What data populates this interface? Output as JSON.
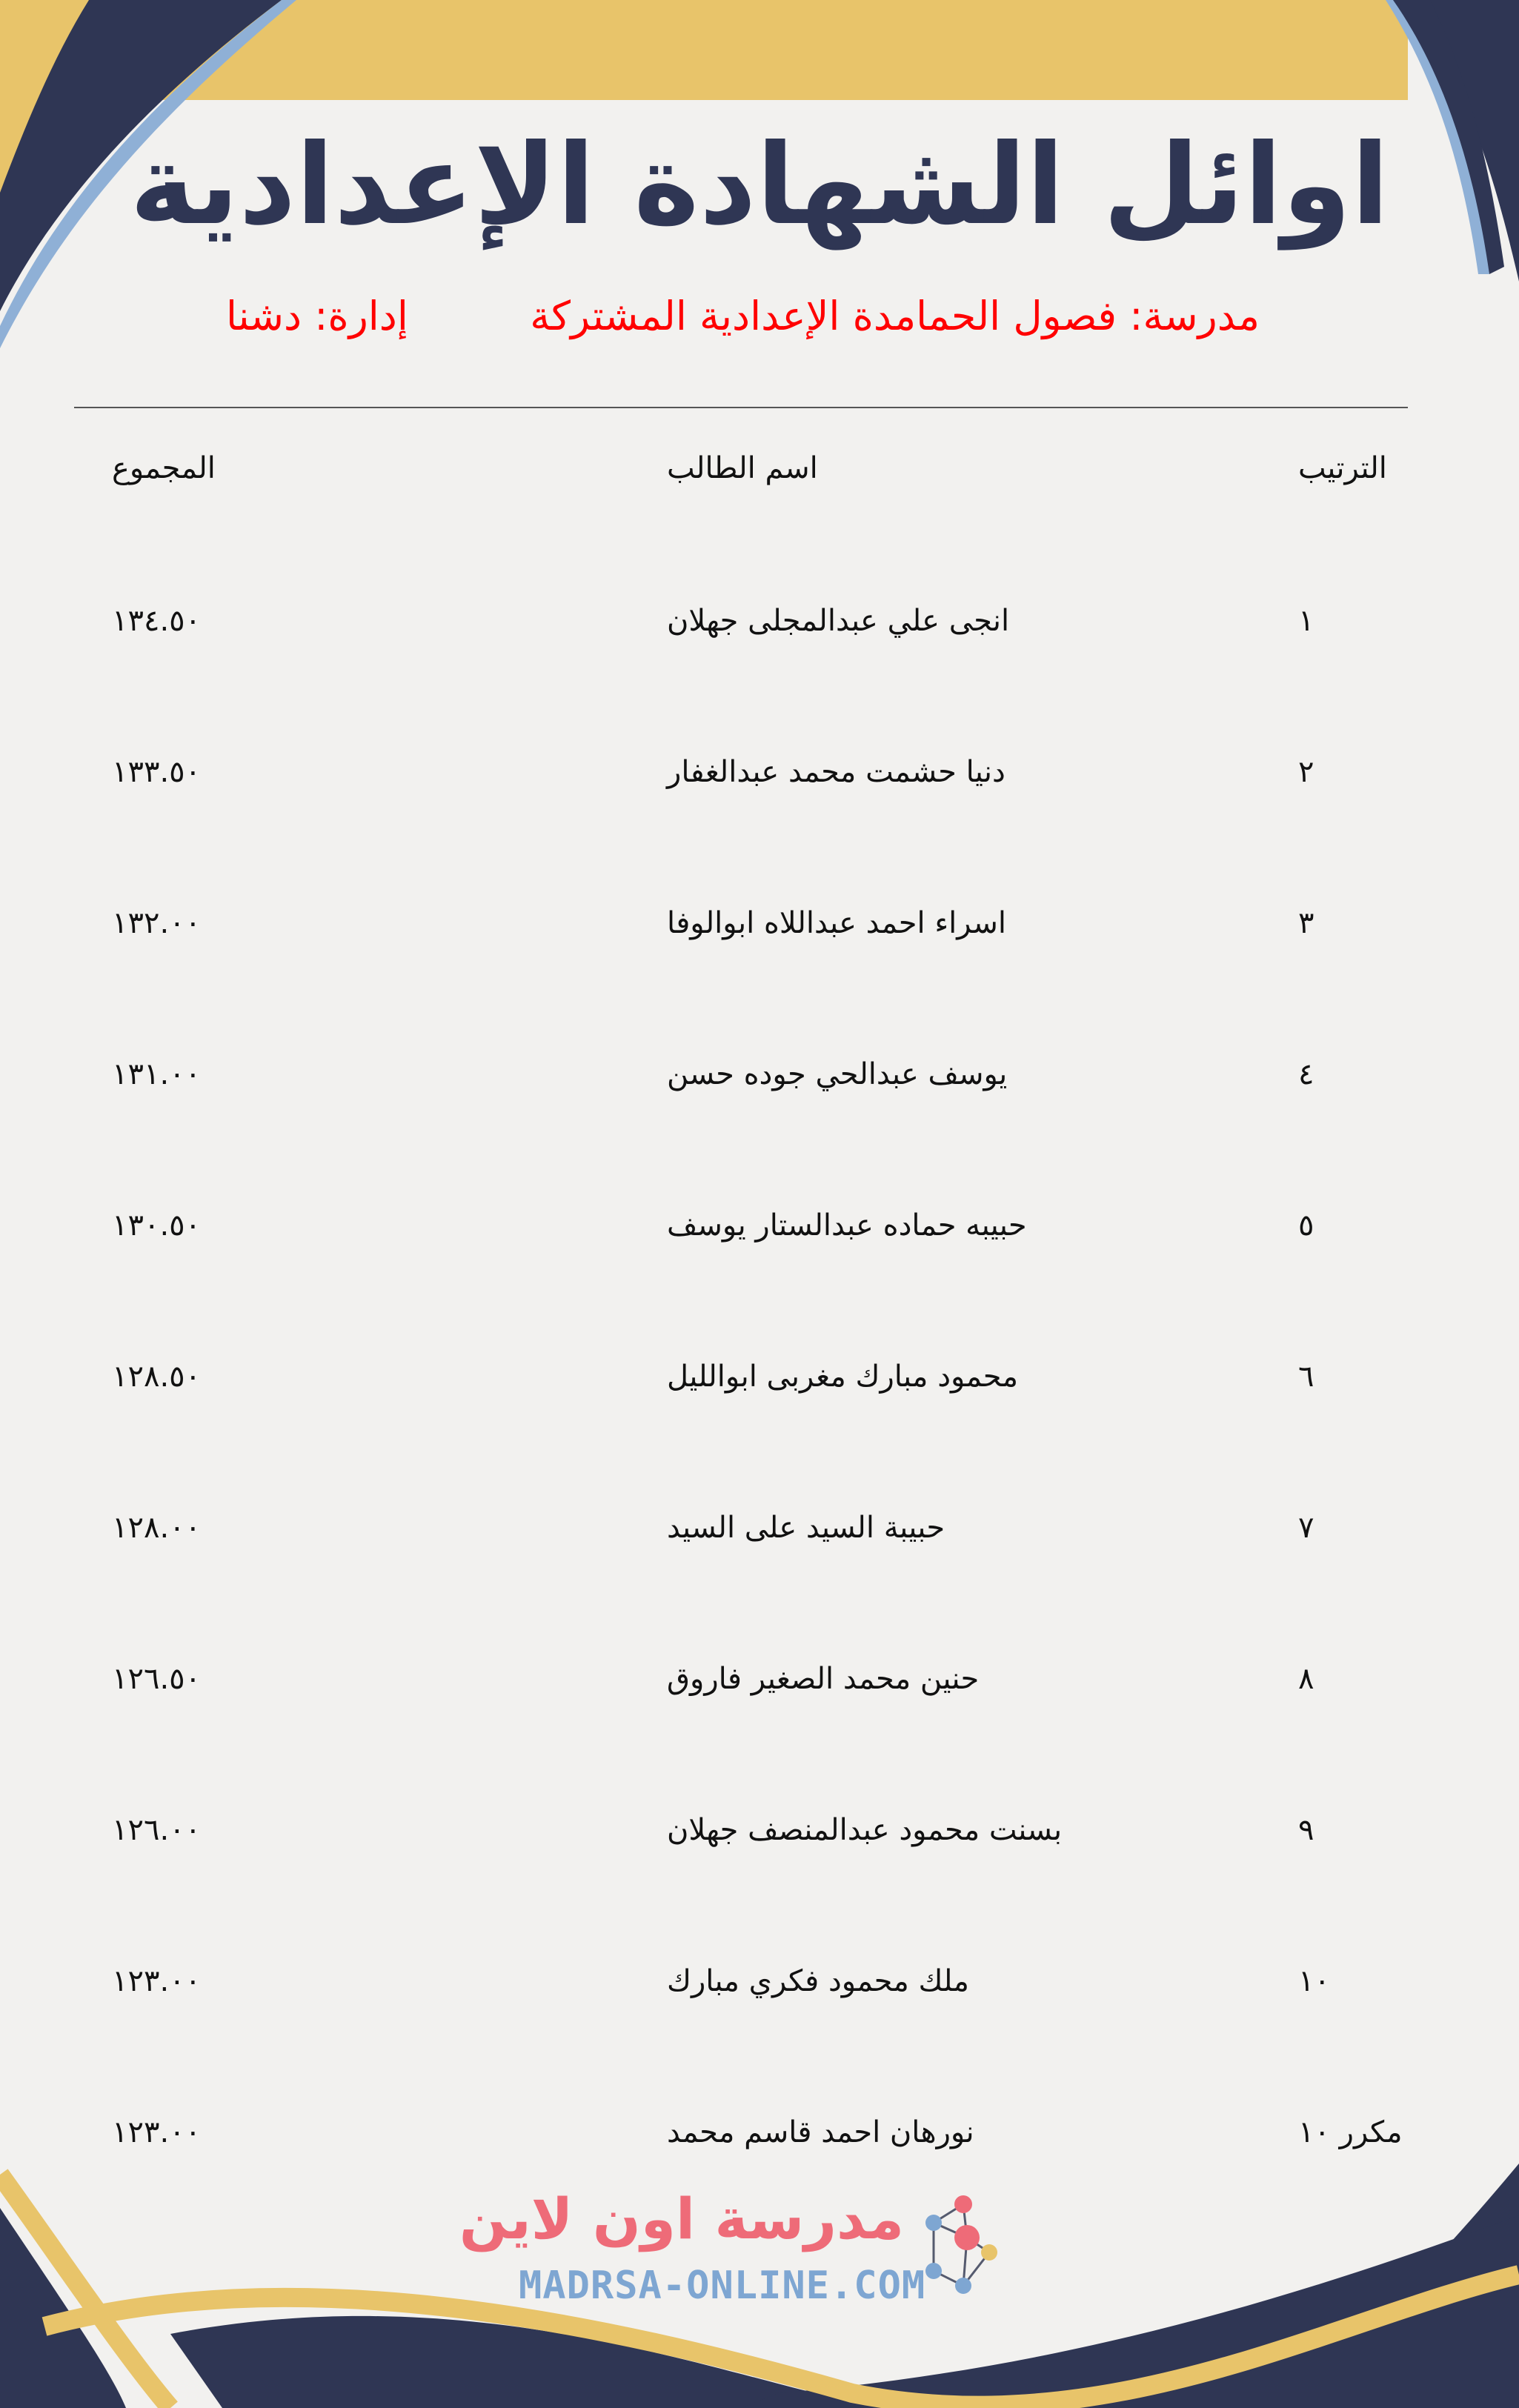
{
  "title": "اوائل الشهادة الإعدادية",
  "school": "مدرسة: فصول الحمامدة الإعدادية المشتركة",
  "administration": "إدارة: دشنا",
  "table": {
    "headers": {
      "rank": "الترتيب",
      "name": "اسم الطالب",
      "total": "المجموع"
    },
    "rows": [
      {
        "rank": "١",
        "name": "انجى علي عبدالمجلى جهلان",
        "total": "١٣٤.٥٠"
      },
      {
        "rank": "٢",
        "name": "دنيا حشمت محمد عبدالغفار",
        "total": "١٣٣.٥٠"
      },
      {
        "rank": "٣",
        "name": "اسراء احمد عبداللاه ابوالوفا",
        "total": "١٣٢.٠٠"
      },
      {
        "rank": "٤",
        "name": "يوسف عبدالحي جوده حسن",
        "total": "١٣١.٠٠"
      },
      {
        "rank": "٥",
        "name": "حبيبه حماده عبدالستار يوسف",
        "total": "١٣٠.٥٠"
      },
      {
        "rank": "٦",
        "name": "محمود مبارك مغربى ابوالليل",
        "total": "١٢٨.٥٠"
      },
      {
        "rank": "٧",
        "name": "حبيبة السيد على السيد",
        "total": "١٢٨.٠٠"
      },
      {
        "rank": "٨",
        "name": "حنين محمد الصغير فاروق",
        "total": "١٢٦.٥٠"
      },
      {
        "rank": "٩",
        "name": "بسنت محمود عبدالمنصف جهلان",
        "total": "١٢٦.٠٠"
      },
      {
        "rank": "١٠",
        "name": "ملك محمود فكري مبارك",
        "total": "١٢٣.٠٠"
      },
      {
        "rank": "مكرر ١٠",
        "name": "نورهان احمد قاسم محمد",
        "total": "١٢٣.٠٠"
      }
    ]
  },
  "logo": {
    "arabic": "مدرسة اون لاين",
    "latin": "MADRSA-ONLINE.COM"
  },
  "colors": {
    "navy": "#2f3654",
    "gold": "#e8c46a",
    "light_blue": "#8fb0d6",
    "red": "#ff0000",
    "logo_pink": "#ee6b78"
  }
}
